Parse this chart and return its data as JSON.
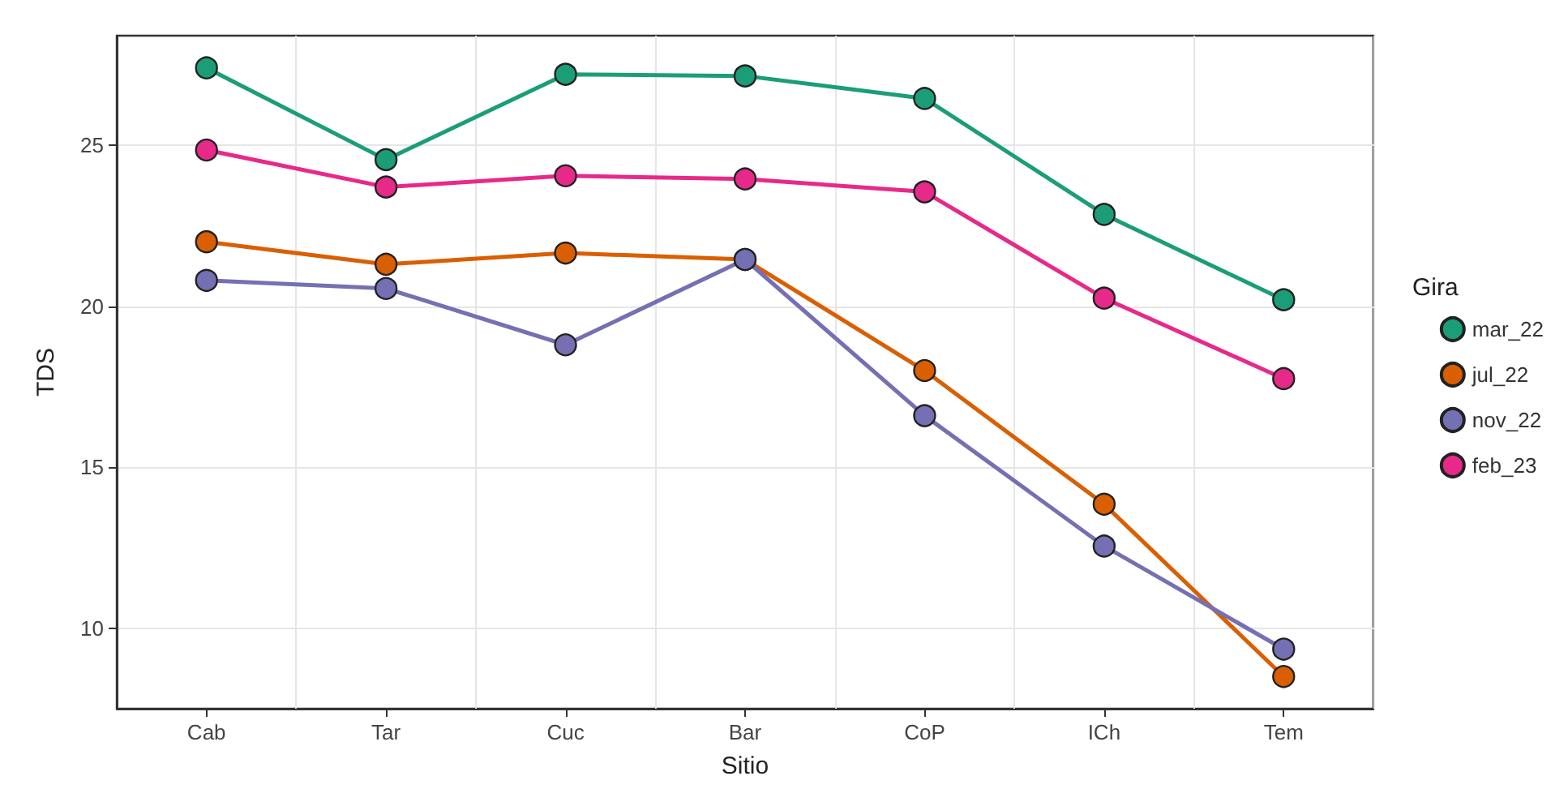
{
  "chart_data": {
    "type": "line",
    "xlabel": "Sitio",
    "ylabel": "TDS",
    "legend_title": "Gira",
    "categories": [
      "Cab",
      "Tar",
      "Cuc",
      "Bar",
      "CoP",
      "ICh",
      "Tem"
    ],
    "series": [
      {
        "name": "mar_22",
        "color": "#1b9e77",
        "values": [
          27.4,
          24.55,
          27.2,
          27.15,
          26.45,
          22.85,
          20.2
        ]
      },
      {
        "name": "jul_22",
        "color": "#d95f02",
        "values": [
          22.0,
          21.3,
          21.65,
          21.45,
          18.0,
          13.85,
          8.5
        ]
      },
      {
        "name": "nov_22",
        "color": "#7570b3",
        "values": [
          20.8,
          20.55,
          18.8,
          21.45,
          16.6,
          12.55,
          9.35
        ]
      },
      {
        "name": "feb_23",
        "color": "#e7298a",
        "values": [
          24.85,
          23.7,
          24.05,
          23.95,
          23.55,
          20.25,
          17.75
        ]
      }
    ],
    "ylim": [
      7.5,
      28.4
    ],
    "yticks": [
      10,
      15,
      20,
      25
    ],
    "grid": true,
    "legend": "right",
    "marker": "circle",
    "line_style": "solid"
  }
}
